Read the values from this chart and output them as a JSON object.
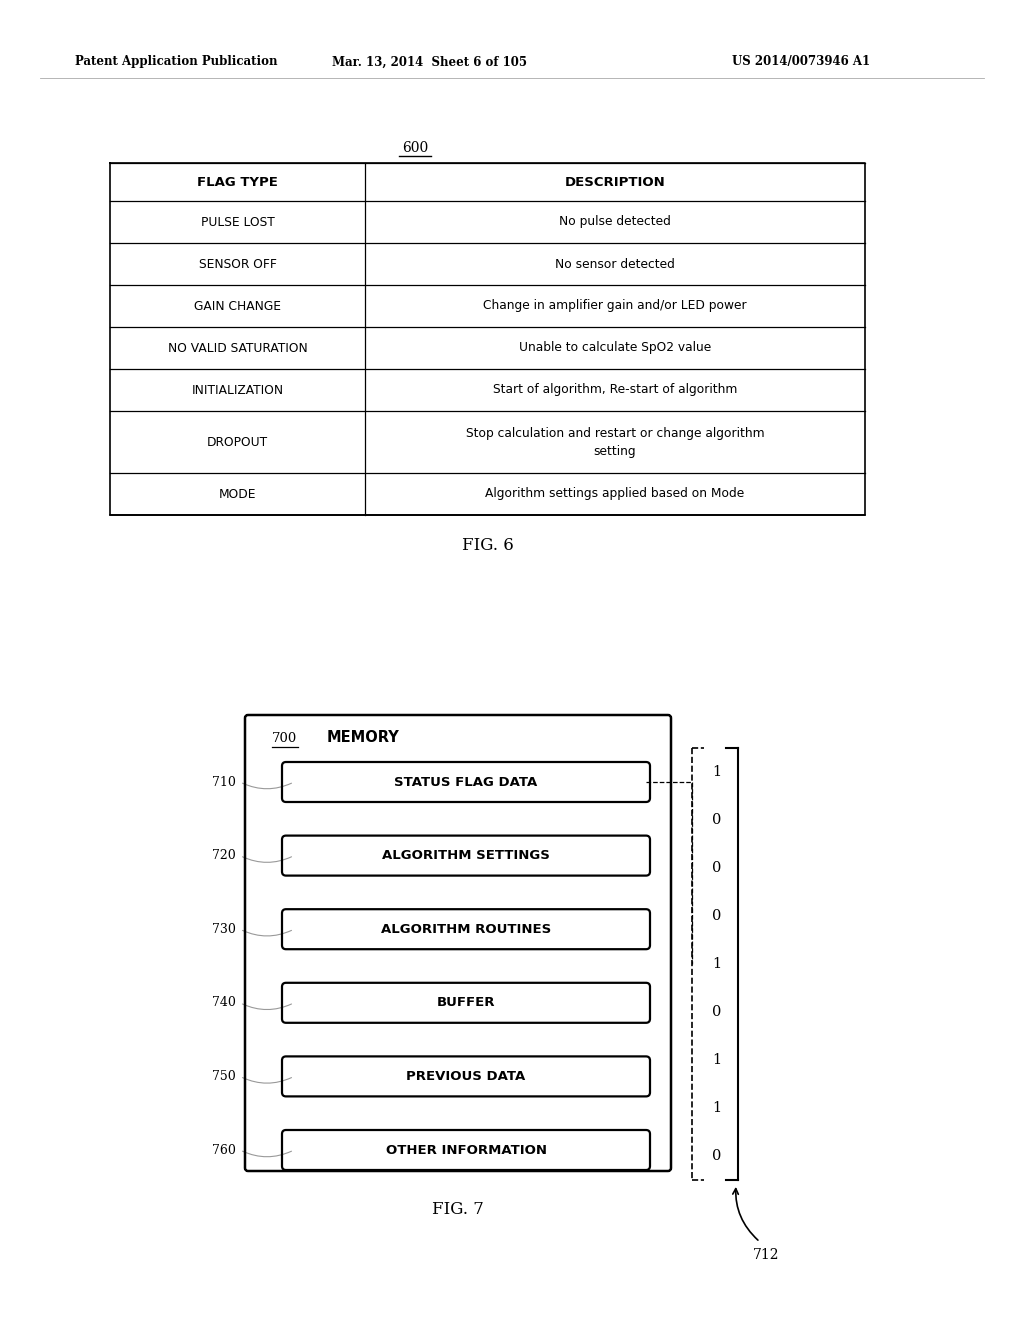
{
  "header_left": "Patent Application Publication",
  "header_mid": "Mar. 13, 2014  Sheet 6 of 105",
  "header_right": "US 2014/0073946 A1",
  "fig6_label": "600",
  "fig6_caption": "FIG. 6",
  "table_headers": [
    "FLAG TYPE",
    "DESCRIPTION"
  ],
  "table_rows": [
    [
      "PULSE LOST",
      "No pulse detected"
    ],
    [
      "SENSOR OFF",
      "No sensor detected"
    ],
    [
      "GAIN CHANGE",
      "Change in amplifier gain and/or LED power"
    ],
    [
      "NO VALID SATURATION",
      "Unable to calculate SpO2 value"
    ],
    [
      "INITIALIZATION",
      "Start of algorithm, Re-start of algorithm"
    ],
    [
      "DROPOUT",
      "Stop calculation and restart or change algorithm\nsetting"
    ],
    [
      "MODE",
      "Algorithm settings applied based on Mode"
    ]
  ],
  "fig7_label": "700",
  "fig7_title": "MEMORY",
  "fig7_caption": "FIG. 7",
  "memory_boxes": [
    {
      "label": "710",
      "text": "STATUS FLAG DATA"
    },
    {
      "label": "720",
      "text": "ALGORITHM SETTINGS"
    },
    {
      "label": "730",
      "text": "ALGORITHM ROUTINES"
    },
    {
      "label": "740",
      "text": "BUFFER"
    },
    {
      "label": "750",
      "text": "PREVIOUS DATA"
    },
    {
      "label": "760",
      "text": "OTHER INFORMATION"
    }
  ],
  "binary_values": [
    "1",
    "0",
    "0",
    "0",
    "1",
    "0",
    "1",
    "1",
    "0"
  ],
  "bit_array_label": "712",
  "bg_color": "#ffffff",
  "line_color": "#000000",
  "text_color": "#000000"
}
